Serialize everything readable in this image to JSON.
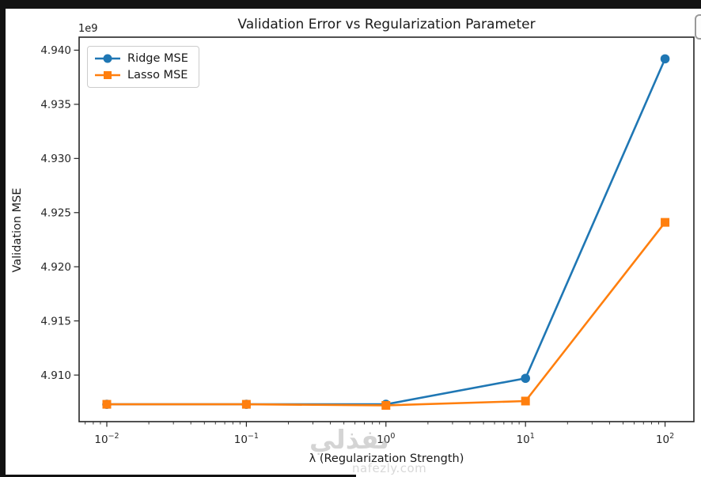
{
  "chart_data": {
    "type": "line",
    "title": "Validation Error vs Regularization Parameter",
    "xlabel": "λ (Regularization Strength)",
    "ylabel": "Validation MSE",
    "y_offset_label": "1e9",
    "x_scale": "log",
    "grid": false,
    "legend_position": "upper left",
    "x": [
      0.01,
      0.1,
      1,
      10,
      100
    ],
    "x_tick_exponents": [
      "−2",
      "−1",
      "0",
      "1",
      "2"
    ],
    "y_ticks": [
      "4.940",
      "4.935",
      "4.930",
      "4.925",
      "4.920",
      "4.915",
      "4.910"
    ],
    "ylim_e9": [
      4.9057,
      4.9412
    ],
    "xlim_log": [
      -2.1984,
      2.2065
    ],
    "axis_color": "#262626",
    "series": [
      {
        "name": "Ridge MSE",
        "color": "#1f77b4",
        "marker": "circle",
        "values_e9": [
          4.9073,
          4.9073,
          4.9073,
          4.9097,
          4.9392
        ]
      },
      {
        "name": "Lasso MSE",
        "color": "#ff7f0e",
        "marker": "square",
        "values_e9": [
          4.9073,
          4.9073,
          4.9072,
          4.9076,
          4.9241
        ]
      }
    ]
  },
  "watermark": {
    "arabic": "نفذلي",
    "latin": "nafezly.com"
  }
}
